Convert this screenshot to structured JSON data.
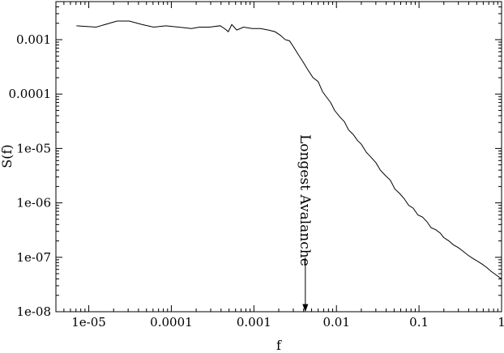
{
  "chart_data": {
    "type": "line",
    "title": "",
    "xlabel": "f",
    "ylabel": "S(f)",
    "x_scale": "log",
    "y_scale": "log",
    "xlim": [
      4e-06,
      1
    ],
    "ylim": [
      1e-08,
      0.005
    ],
    "x_ticks": [
      {
        "value": 1e-05,
        "label": "1e-05"
      },
      {
        "value": 0.0001,
        "label": "0.0001"
      },
      {
        "value": 0.001,
        "label": "0.001"
      },
      {
        "value": 0.01,
        "label": "0.01"
      },
      {
        "value": 0.1,
        "label": "0.1"
      },
      {
        "value": 1,
        "label": "1"
      }
    ],
    "y_ticks": [
      {
        "value": 1e-08,
        "label": "1e-08"
      },
      {
        "value": 1e-07,
        "label": "1e-07"
      },
      {
        "value": 1e-06,
        "label": "1e-06"
      },
      {
        "value": 1e-05,
        "label": "1e-05"
      },
      {
        "value": 0.0001,
        "label": "0.0001"
      },
      {
        "value": 0.001,
        "label": "0.001"
      }
    ],
    "grid": false,
    "legend": "none",
    "series": [
      {
        "x": [
          7.1e-06,
          1.23e-05,
          2.2e-05,
          3.1e-05,
          4.4e-05,
          6.1e-05,
          8.6e-05,
          0.000123,
          0.000175,
          0.00022,
          0.00029,
          0.00039,
          0.00044,
          0.00049,
          0.00054,
          0.00062,
          0.00075,
          0.00095,
          0.0012,
          0.0015,
          0.0018,
          0.0021,
          0.0024,
          0.0027,
          0.003,
          0.0034,
          0.0039,
          0.0045,
          0.0052,
          0.006,
          0.0068,
          0.0075,
          0.0085,
          0.0095,
          0.011,
          0.0125,
          0.014,
          0.016,
          0.018,
          0.02,
          0.023,
          0.026,
          0.03,
          0.034,
          0.039,
          0.045,
          0.051,
          0.058,
          0.066,
          0.075,
          0.085,
          0.097,
          0.11,
          0.125,
          0.14,
          0.16,
          0.18,
          0.2,
          0.23,
          0.26,
          0.3,
          0.34,
          0.39,
          0.45,
          0.51,
          0.58,
          0.66,
          0.75,
          0.85,
          1.0
        ],
        "y": [
          0.0018,
          0.0017,
          0.0022,
          0.0022,
          0.0019,
          0.0017,
          0.0018,
          0.0017,
          0.0016,
          0.0017,
          0.0017,
          0.0018,
          0.0016,
          0.0014,
          0.0019,
          0.0015,
          0.0017,
          0.0016,
          0.0016,
          0.0015,
          0.0014,
          0.0012,
          0.001,
          0.00095,
          0.00075,
          0.00055,
          0.0004,
          0.00028,
          0.0002,
          0.00017,
          0.00011,
          9e-05,
          7e-05,
          5e-05,
          3.8e-05,
          3.1e-05,
          2.2e-05,
          1.8e-05,
          1.4e-05,
          1.2e-05,
          8.5e-06,
          7e-06,
          5.5e-06,
          4e-06,
          3.2e-06,
          2.6e-06,
          1.8e-06,
          1.5e-06,
          1.2e-06,
          9e-07,
          8e-07,
          6e-07,
          5.5e-07,
          4.5e-07,
          3.5e-07,
          3.2e-07,
          2.8e-07,
          2.3e-07,
          2e-07,
          1.7e-07,
          1.5e-07,
          1.3e-07,
          1.1e-07,
          9.5e-08,
          8.5e-08,
          7.5e-08,
          6.5e-08,
          5.5e-08,
          4.8e-08,
          4e-08
        ]
      }
    ],
    "annotations": [
      {
        "text": "Longest Avalanche",
        "x": 0.0042,
        "y_arrow_tip": 1e-08
      }
    ]
  }
}
